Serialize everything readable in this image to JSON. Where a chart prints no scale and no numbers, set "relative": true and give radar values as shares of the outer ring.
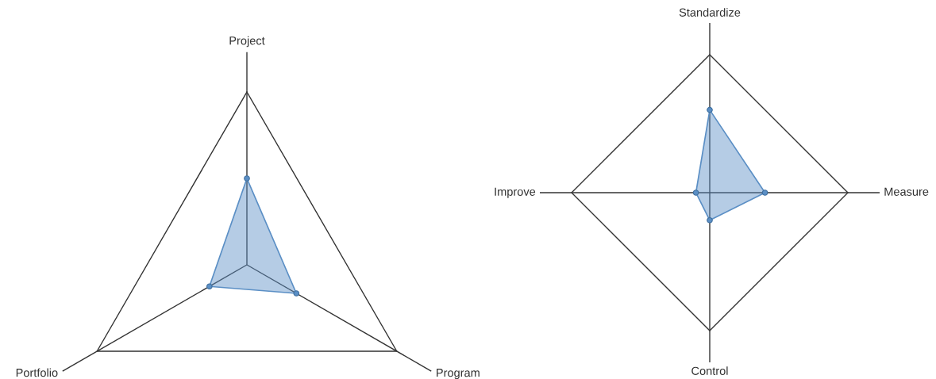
{
  "chart_data": [
    {
      "type": "radar",
      "categories": [
        "Project",
        "Program",
        "Portfolio"
      ],
      "relative": true,
      "grid": true,
      "marker": "circle",
      "line_style": "solid",
      "series": [
        {
          "color": "#5b8fc5",
          "values": [
            0.5,
            0.33,
            0.25
          ]
        }
      ]
    },
    {
      "type": "radar",
      "categories": [
        "Standardize",
        "Measure",
        "Control",
        "Improve"
      ],
      "relative": true,
      "grid": true,
      "marker": "circle",
      "line_style": "solid",
      "series": [
        {
          "color": "#5b8fc5",
          "values": [
            0.6,
            0.4,
            0.2,
            0.1
          ]
        }
      ]
    }
  ]
}
